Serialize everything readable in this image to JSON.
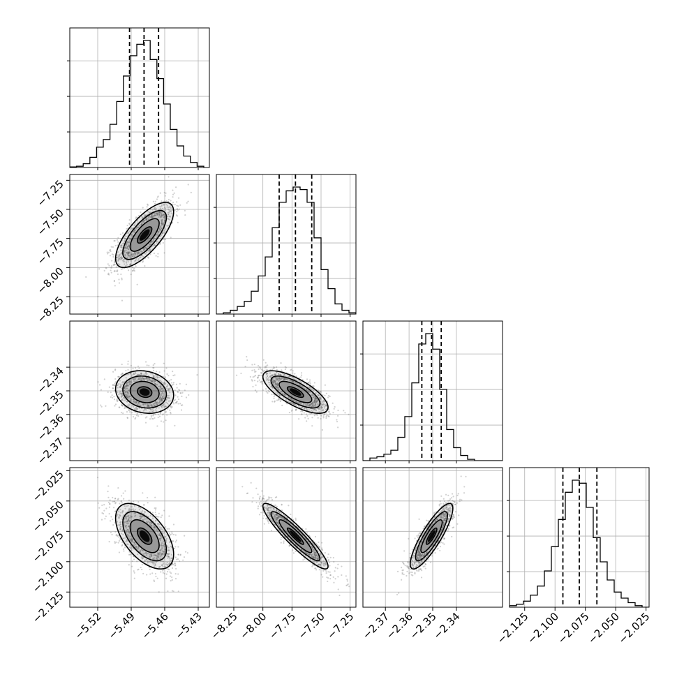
{
  "chart_data": {
    "type": "corner",
    "parameters": [
      {
        "range": [
          -5.545,
          -5.42
        ],
        "ticks": [
          -5.52,
          -5.49,
          -5.46,
          -5.43
        ],
        "tick_labels": [
          "−5.52",
          "−5.49",
          "−5.46",
          "−5.43"
        ],
        "quantiles": [
          -5.4915,
          -5.4785,
          -5.4655
        ],
        "hist_bins": [
          -5.545,
          -5.539,
          -5.533,
          -5.527,
          -5.521,
          -5.515,
          -5.509,
          -5.503,
          -5.497,
          -5.491,
          -5.485,
          -5.479,
          -5.473,
          -5.467,
          -5.461,
          -5.455,
          -5.449,
          -5.443,
          -5.437,
          -5.431,
          -5.425
        ],
        "hist_counts": [
          0.005,
          0.01,
          0.03,
          0.08,
          0.16,
          0.22,
          0.34,
          0.52,
          0.72,
          0.88,
          0.97,
          1.0,
          0.85,
          0.7,
          0.5,
          0.3,
          0.17,
          0.09,
          0.04,
          0.01
        ]
      },
      {
        "range": [
          -8.4,
          -7.2
        ],
        "ticks": [
          -8.25,
          -8.0,
          -7.75,
          -7.5,
          -7.25
        ],
        "tick_labels": [
          "−8.25",
          "−8.00",
          "−7.75",
          "−7.50",
          "−7.25"
        ],
        "quantiles": [
          -7.86,
          -7.72,
          -7.58
        ],
        "hist_bins": [
          -8.4,
          -8.34,
          -8.28,
          -8.22,
          -8.16,
          -8.1,
          -8.04,
          -7.98,
          -7.92,
          -7.86,
          -7.8,
          -7.74,
          -7.68,
          -7.62,
          -7.56,
          -7.5,
          -7.44,
          -7.38,
          -7.32,
          -7.26,
          -7.2
        ],
        "hist_counts": [
          0.0,
          0.01,
          0.03,
          0.06,
          0.1,
          0.18,
          0.3,
          0.45,
          0.68,
          0.88,
          0.97,
          1.0,
          0.98,
          0.88,
          0.6,
          0.35,
          0.2,
          0.08,
          0.03,
          0.01
        ]
      },
      {
        "range": [
          -2.3795,
          -2.3205
        ],
        "ticks": [
          -2.37,
          -2.36,
          -2.35,
          -2.34
        ],
        "tick_labels": [
          "−2.37",
          "−2.36",
          "−2.35",
          "−2.34"
        ],
        "quantiles": [
          -2.3546,
          -2.3505,
          -2.3464
        ],
        "hist_bins": [
          -2.3795,
          -2.37655,
          -2.3736,
          -2.37065,
          -2.3677,
          -2.36475,
          -2.3618,
          -2.35885,
          -2.3559,
          -2.35295,
          -2.35,
          -2.34705,
          -2.3441,
          -2.34115,
          -2.3382,
          -2.33525,
          -2.3323,
          -2.32935,
          -2.3264,
          -2.32345,
          -2.3205
        ],
        "hist_counts": [
          0.0,
          0.02,
          0.03,
          0.05,
          0.08,
          0.18,
          0.34,
          0.6,
          0.9,
          0.98,
          0.86,
          0.55,
          0.24,
          0.1,
          0.04,
          0.01,
          0.0,
          0.0,
          0.0,
          0.0
        ]
      },
      {
        "range": [
          -2.1375,
          -2.0225
        ],
        "ticks": [
          -2.125,
          -2.1,
          -2.075,
          -2.05,
          -2.025
        ],
        "tick_labels": [
          "−2.125",
          "−2.100",
          "−2.075",
          "−2.050",
          "−2.025"
        ],
        "quantiles": [
          -2.0935,
          -2.08,
          -2.0655
        ],
        "hist_bins": [
          -2.1375,
          -2.13175,
          -2.126,
          -2.12025,
          -2.1145,
          -2.10875,
          -2.103,
          -2.09725,
          -2.0915,
          -2.08575,
          -2.08,
          -2.07425,
          -2.0685,
          -2.06275,
          -2.057,
          -2.05125,
          -2.0455,
          -2.03975,
          -2.034,
          -2.02825,
          -2.0225
        ],
        "hist_counts": [
          0.01,
          0.02,
          0.04,
          0.08,
          0.14,
          0.24,
          0.4,
          0.58,
          0.76,
          0.84,
          0.82,
          0.66,
          0.46,
          0.3,
          0.18,
          0.1,
          0.06,
          0.03,
          0.01,
          0.0
        ]
      }
    ],
    "pair_stats": [
      {
        "i": 1,
        "j": 0,
        "mean_x": -5.478,
        "mean_y": -7.72,
        "sd_x": 0.013,
        "sd_y": 0.14,
        "corr": 0.72
      },
      {
        "i": 2,
        "j": 0,
        "mean_x": -5.478,
        "mean_y": -2.3505,
        "sd_x": 0.013,
        "sd_y": 0.0045,
        "corr": -0.15
      },
      {
        "i": 2,
        "j": 1,
        "mean_x": -7.72,
        "mean_y": -2.3505,
        "sd_x": 0.14,
        "sd_y": 0.0045,
        "corr": -0.72
      },
      {
        "i": 3,
        "j": 0,
        "mean_x": -5.478,
        "mean_y": -2.079,
        "sd_x": 0.013,
        "sd_y": 0.0135,
        "corr": -0.55
      },
      {
        "i": 3,
        "j": 1,
        "mean_x": -7.72,
        "mean_y": -2.079,
        "sd_x": 0.14,
        "sd_y": 0.0135,
        "corr": -0.92
      },
      {
        "i": 3,
        "j": 2,
        "mean_x": -2.3505,
        "mean_y": -2.079,
        "sd_x": 0.0045,
        "sd_y": 0.0135,
        "corr": 0.85
      }
    ],
    "contour_levels_sigma": [
      0.5,
      1.0,
      1.5,
      2.0
    ],
    "colors": {
      "line": "#000000",
      "grid": "#b0b0b0",
      "points": "#7a7a7a",
      "fill": "#000000"
    },
    "grid": true,
    "title": "",
    "xlabel": "",
    "ylabel": ""
  }
}
